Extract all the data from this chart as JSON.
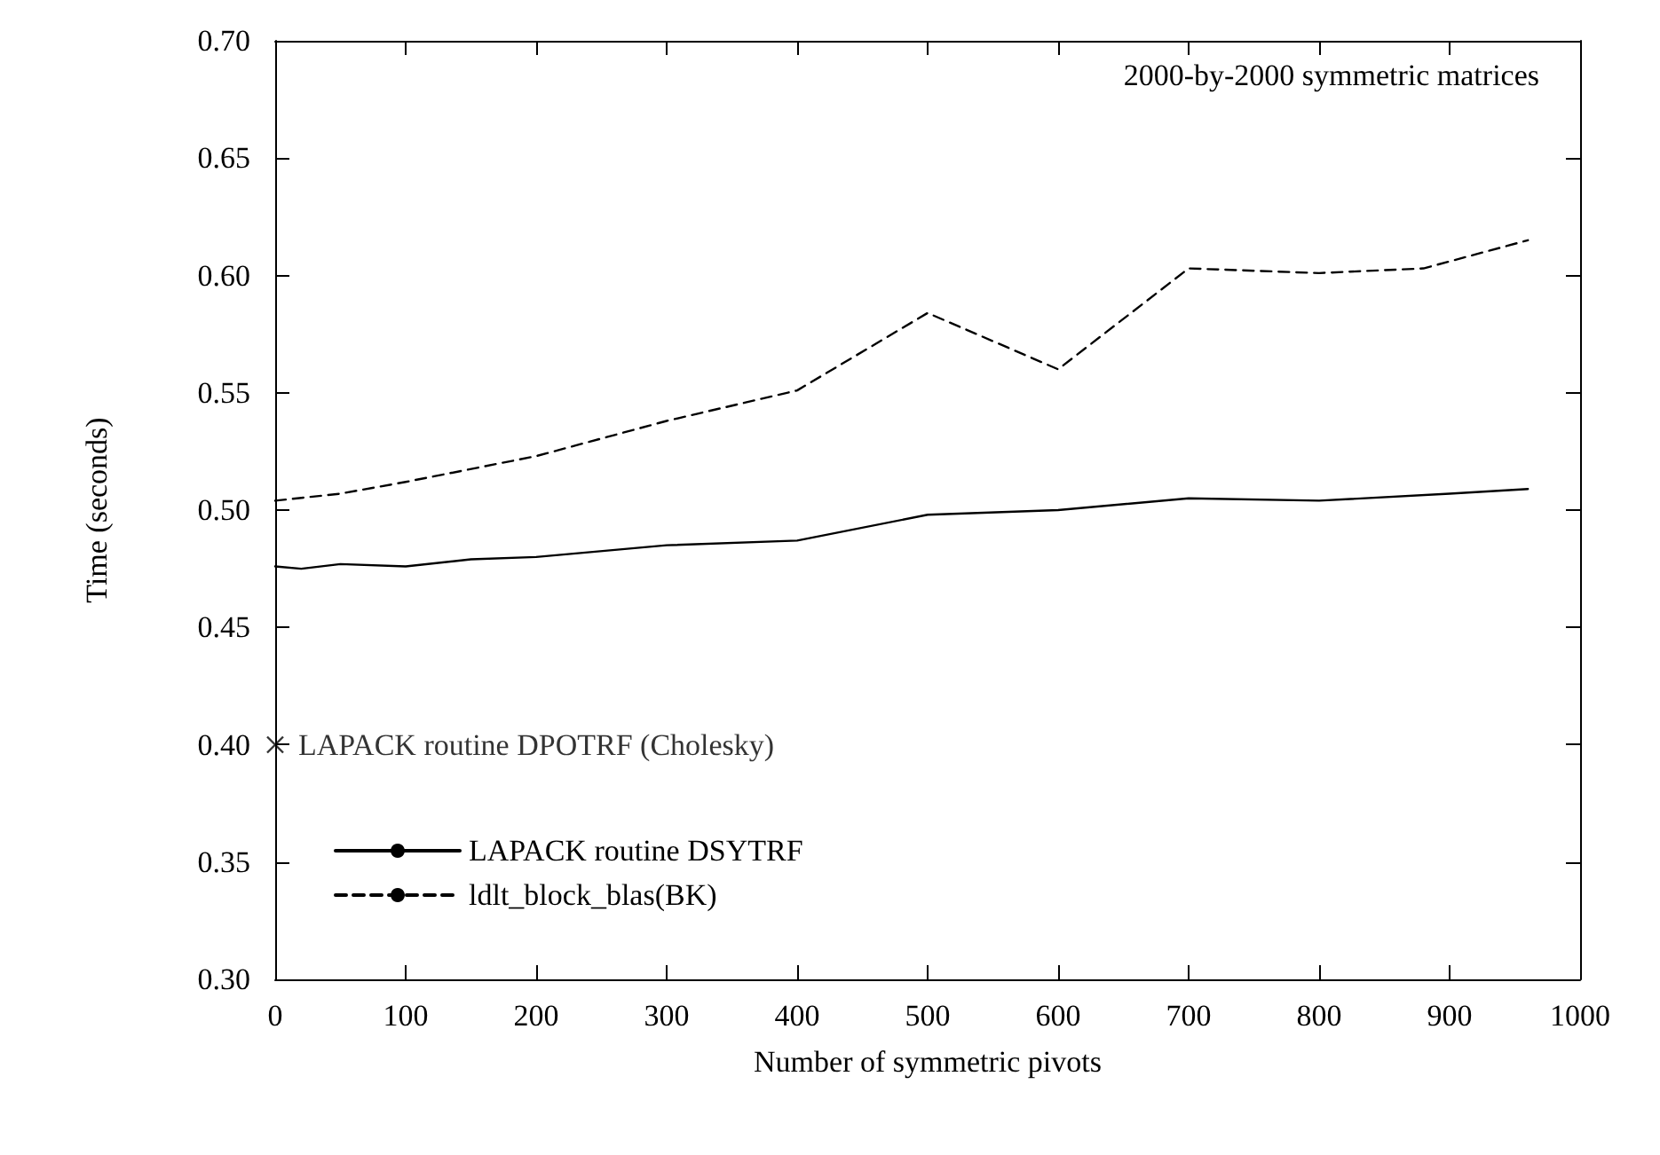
{
  "chart_data": {
    "type": "line",
    "xlabel": "Number of symmetric pivots",
    "ylabel": "Time (seconds)",
    "annotations": [
      "2000-by-2000 symmetric matrices"
    ],
    "xlim": [
      0,
      1000
    ],
    "xticks": [
      0,
      100,
      200,
      300,
      400,
      500,
      600,
      700,
      800,
      900,
      1000
    ],
    "ylim": [
      0.3,
      0.7
    ],
    "yticks": [
      {
        "value": 0.3,
        "label": "0.30"
      },
      {
        "value": 0.35,
        "label": "0.35"
      },
      {
        "value": 0.4,
        "label": "0.40"
      },
      {
        "value": 0.45,
        "label": "0.45"
      },
      {
        "value": 0.5,
        "label": "0.50"
      },
      {
        "value": 0.55,
        "label": "0.55"
      },
      {
        "value": 0.6,
        "label": "0.60"
      },
      {
        "value": 0.65,
        "label": "0.65"
      },
      {
        "value": 0.7,
        "label": "0.70"
      }
    ],
    "grid": false,
    "legend": "bottom left",
    "marker": "none",
    "series": [
      {
        "name": "LAPACK routine DSYTRF",
        "color": "#000000",
        "line_style": "solid",
        "x": [
          0,
          20,
          50,
          100,
          150,
          200,
          300,
          400,
          500,
          600,
          700,
          800,
          900,
          960
        ],
        "values": [
          0.476,
          0.475,
          0.477,
          0.476,
          0.479,
          0.48,
          0.485,
          0.487,
          0.498,
          0.5,
          0.505,
          0.504,
          0.507,
          0.509
        ]
      },
      {
        "name": "ldlt_block_blas(BK)",
        "color": "#000000",
        "line_style": "dashed",
        "x": [
          0,
          50,
          100,
          200,
          300,
          400,
          500,
          600,
          700,
          800,
          880,
          960
        ],
        "values": [
          0.504,
          0.507,
          0.512,
          0.523,
          0.538,
          0.551,
          0.584,
          0.56,
          0.603,
          0.601,
          0.603,
          0.615
        ]
      },
      {
        "name": "LAPACK routine DPOTRF (Cholesky)",
        "type": "scatter",
        "marker": "cross",
        "color": "#000000",
        "x": [
          0
        ],
        "values": [
          0.4
        ]
      }
    ]
  }
}
